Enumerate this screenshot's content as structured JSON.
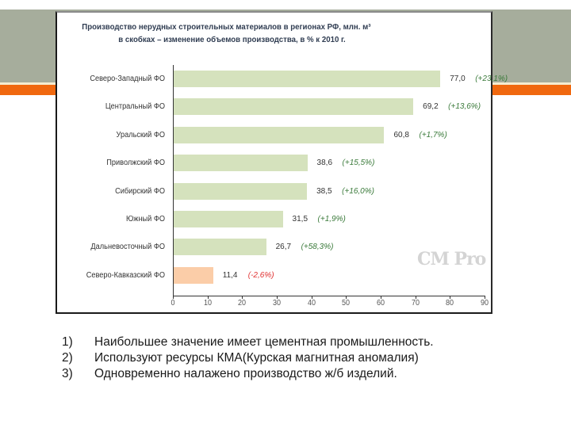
{
  "slide": {
    "colors": {
      "band": "#a6ad9c",
      "accent_stripe": "#f0680f",
      "bar_default": "#d5e2bd",
      "bar_highlight": "#fbcda8",
      "change_positive": "#3a7a3a",
      "change_negative": "#e03030"
    }
  },
  "chart_data": {
    "type": "bar",
    "orientation": "horizontal",
    "title": "Производство нерудных строительных материалов в регионах РФ, млн. м³",
    "subtitle": "в скобках – изменение объемов производства, в % к 2010 г.",
    "categories": [
      "Северо-Западный ФО",
      "Центральный ФО",
      "Уральский ФО",
      "Приволжский ФО",
      "Сибирский ФО",
      "Южный ФО",
      "Дальневосточный ФО",
      "Северо-Кавказский ФО"
    ],
    "values": [
      77.0,
      69.2,
      60.8,
      38.6,
      38.5,
      31.5,
      26.7,
      11.4
    ],
    "value_labels": [
      "77,0",
      "69,2",
      "60,8",
      "38,6",
      "38,5",
      "31,5",
      "26,7",
      "11,4"
    ],
    "change_labels": [
      "(+23,1%)",
      "(+13,6%)",
      "(+1,7%)",
      "(+15,5%)",
      "(+16,0%)",
      "(+1,9%)",
      "(+58,3%)",
      "(-2,6%)"
    ],
    "change_pct": [
      23.1,
      13.6,
      1.7,
      15.5,
      16.0,
      1.9,
      58.3,
      -2.6
    ],
    "xlim": [
      0,
      90
    ],
    "xticks": [
      "0",
      "10",
      "20",
      "30",
      "40",
      "50",
      "60",
      "70",
      "80",
      "90"
    ],
    "xlabel": "",
    "ylabel": "",
    "grid": false,
    "legend": null,
    "watermark": "CM Pro"
  },
  "notes": [
    {
      "num": "1)",
      "text": "Наибольшее значение имеет цементная промышленность."
    },
    {
      "num": "2)",
      "text": "Используют ресурсы КМА(Курская магнитная аномалия)"
    },
    {
      "num": "3)",
      "text": "Одновременно налажено производство ж/б изделий."
    }
  ]
}
